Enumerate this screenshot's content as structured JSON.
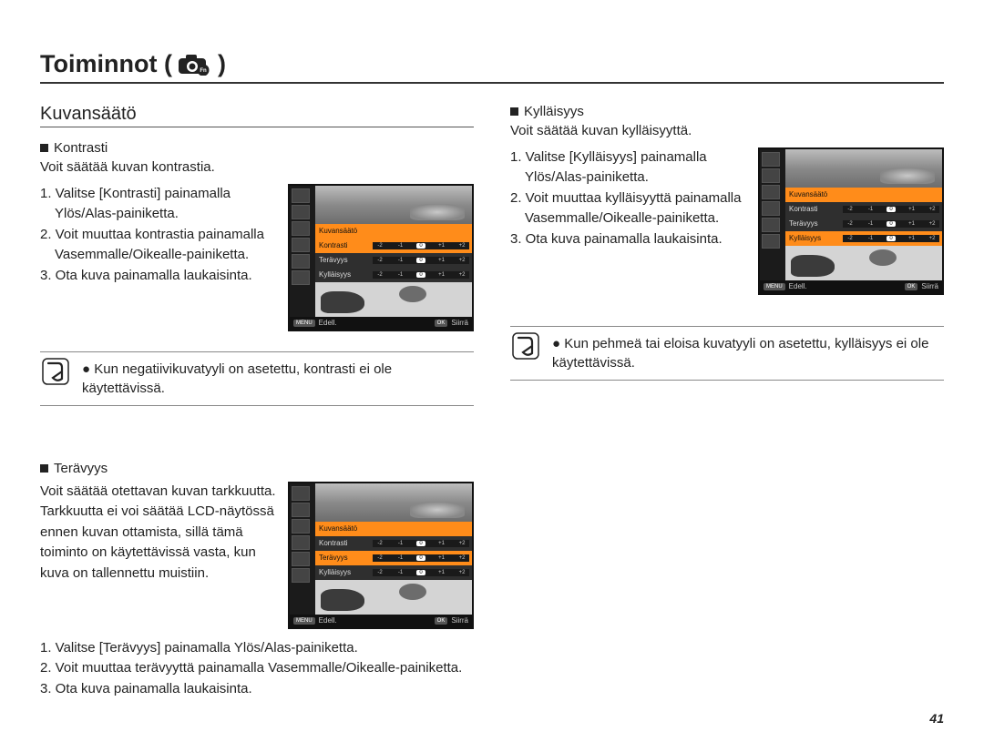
{
  "page": {
    "title_prefix": "Toiminnot (",
    "title_suffix": " )",
    "number": "41"
  },
  "left": {
    "section_title": "Kuvansäätö",
    "kontrasti": {
      "heading": "Kontrasti",
      "desc": "Voit säätää kuvan kontrastia.",
      "steps": [
        "1. Valitse [Kontrasti] painamalla Ylös/Alas-painiketta.",
        "2. Voit muuttaa kontrastia painamalla Vasemmalle/Oikealle-painiketta.",
        "3. Ota kuva painamalla laukaisinta."
      ],
      "note": "Kun negatiivikuvatyyli on asetettu, kontrasti ei ole käytettävissä."
    },
    "teravyys": {
      "heading": "Terävyys",
      "desc": "Voit säätää otettavan kuvan tarkkuutta. Tarkkuutta ei voi säätää LCD-näytössä ennen kuvan ottamista, sillä tämä toiminto on käytettävissä vasta, kun kuva on tallennettu muistiin.",
      "steps": [
        "1. Valitse [Terävyys] painamalla Ylös/Alas-painiketta.",
        "2. Voit muuttaa terävyyttä painamalla Vasemmalle/Oikealle-painiketta.",
        "3. Ota kuva painamalla laukaisinta."
      ]
    }
  },
  "right": {
    "kyllaisyys": {
      "heading": "Kylläisyys",
      "desc": "Voit säätää kuvan kylläisyyttä.",
      "steps": [
        "1. Valitse [Kylläisyys] painamalla Ylös/Alas-painiketta.",
        "2. Voit muuttaa kylläisyyttä painamalla Vasemmalle/Oikealle-painiketta.",
        "3. Ota kuva painamalla laukaisinta."
      ],
      "note": "Kun pehmeä tai eloisa kuvatyyli on asetettu, kylläisyys ei ole käytettävissä."
    }
  },
  "lcd": {
    "menu_title": "Kuvansäätö",
    "row1": "Kontrasti",
    "row2": "Terävyys",
    "row3": "Kylläisyys",
    "scale": [
      "-2",
      "-1",
      "0",
      "+1",
      "+2"
    ],
    "menu_btn": "MENU",
    "back_label": "Edell.",
    "ok_btn": "OK",
    "move_label": "Siirrä"
  }
}
